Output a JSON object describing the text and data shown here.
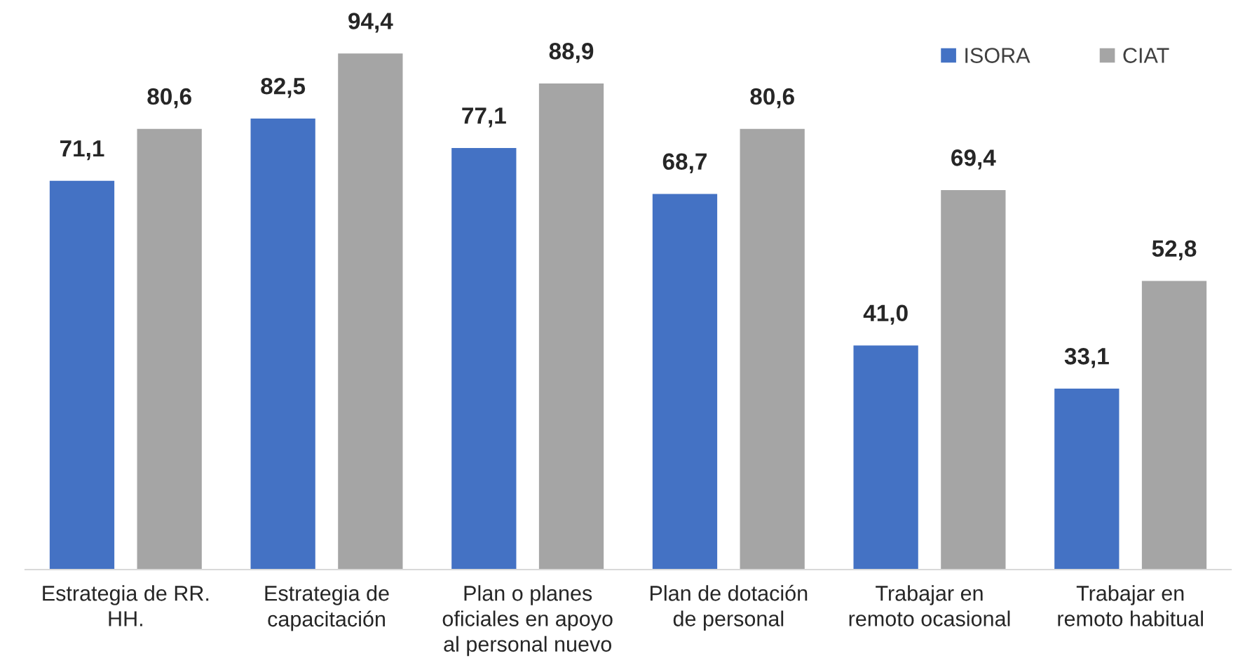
{
  "chart_data": {
    "type": "bar",
    "categories": [
      "Estrategia de RR.\nHH.",
      "Estrategia de\ncapacitación",
      "Plan o planes\noficiales en apoyo\nal personal nuevo",
      "Plan de dotación\nde personal",
      "Trabajar en\nremoto ocasional",
      "Trabajar en\nremoto habitual"
    ],
    "series": [
      {
        "name": "ISORA",
        "color": "#4472c4",
        "values": [
          71.1,
          82.5,
          77.1,
          68.7,
          41.0,
          33.1
        ],
        "value_labels": [
          "71,1",
          "82,5",
          "77,1",
          "68,7",
          "41,0",
          "33,1"
        ]
      },
      {
        "name": "CIAT",
        "color": "#a5a5a5",
        "values": [
          80.6,
          94.4,
          88.9,
          80.6,
          69.4,
          52.8
        ],
        "value_labels": [
          "80,6",
          "94,4",
          "88,9",
          "80,6",
          "69,4",
          "52,8"
        ]
      }
    ],
    "tick_labels": "x",
    "legend": "top right"
  }
}
